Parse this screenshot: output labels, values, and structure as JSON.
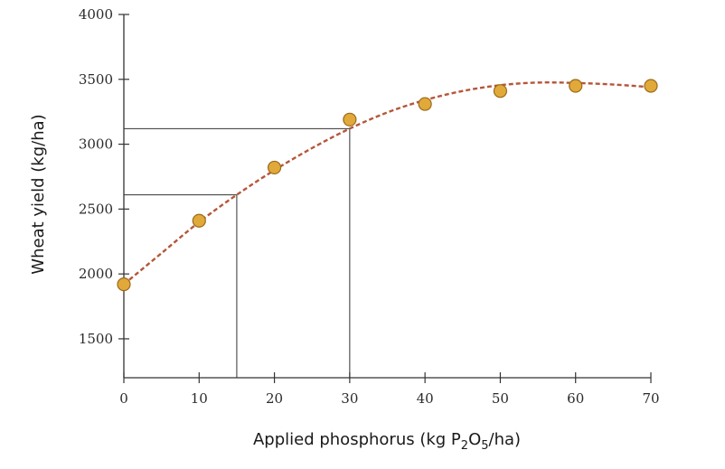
{
  "chart_data": {
    "type": "scatter",
    "xlabel_parts": {
      "before": "Applied phosphorus (kg P",
      "sub1": "2",
      "mid": "O",
      "sub2": "5",
      "after": "/ha)"
    },
    "ylabel": "Wheat yield (kg/ha)",
    "x_ticks": [
      "0",
      "10",
      "20",
      "30",
      "40",
      "50",
      "60",
      "70"
    ],
    "y_ticks": [
      "1500",
      "2000",
      "2500",
      "3000",
      "3500",
      "4000"
    ],
    "xlim": [
      0,
      70
    ],
    "ylim": [
      1200,
      4000
    ],
    "points": {
      "x": [
        0,
        10,
        20,
        30,
        40,
        50,
        60,
        70
      ],
      "y": [
        1920,
        2410,
        2820,
        3190,
        3310,
        3410,
        3450,
        3450
      ]
    },
    "fitted_curve": {
      "x": [
        0,
        5,
        10,
        15,
        20,
        25,
        30,
        35,
        40,
        45,
        50,
        55,
        60,
        65,
        70
      ],
      "y": [
        1920,
        2160,
        2400,
        2610,
        2800,
        2970,
        3120,
        3245,
        3340,
        3410,
        3455,
        3475,
        3472,
        3460,
        3440
      ]
    },
    "guide_lines": [
      {
        "x": 15,
        "y": 2610
      },
      {
        "x": 30,
        "y": 3120
      }
    ],
    "colors": {
      "point_fill": "#E1A93A",
      "point_stroke": "#9A6B1C",
      "curve": "#B5563A",
      "axis": "#333333"
    },
    "grid": false,
    "legend": "none"
  }
}
